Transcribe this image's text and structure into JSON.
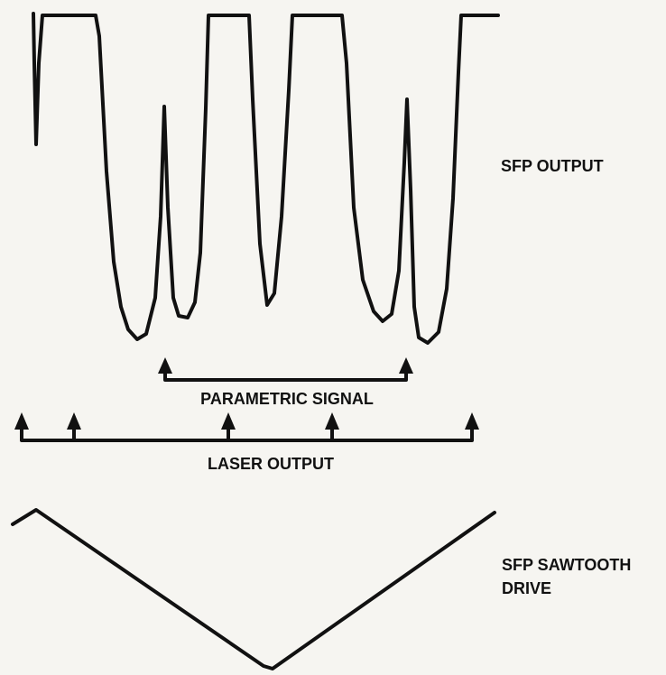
{
  "labels": {
    "sfp_output": "SFP OUTPUT",
    "parametric_signal": "PARAMETRIC SIGNAL",
    "laser_output": "LASER OUTPUT",
    "sfp_sawtooth_drive": [
      "SFP SAWTOOTH",
      "DRIVE"
    ]
  }
}
